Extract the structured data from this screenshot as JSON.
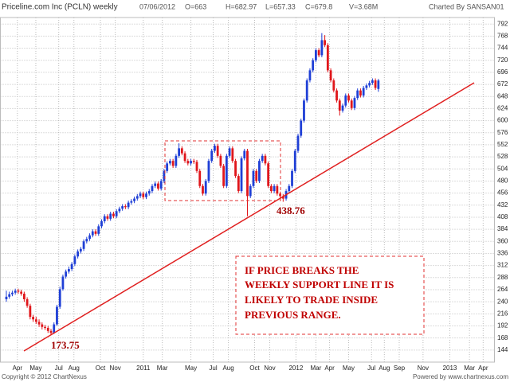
{
  "chart_data": {
    "type": "candlestick",
    "title": "Priceline.com Inc (PCLN) weekly",
    "header": [
      "07/06/2012",
      "O=663",
      "H=682.97",
      "L=657.33",
      "C=679.8",
      "V=3.68M"
    ],
    "credit": "Charted By SANSAN01",
    "footer_left": "Copyright © 2012 ChartNexus",
    "footer_right": "Powered by www.chartnexus.com",
    "annotations": [
      "173.75",
      "438.76"
    ],
    "note": [
      "IF PRICE BREAKS THE",
      "WEEKLY SUPPORT LINE IT IS",
      "LIKELY TO TRADE INSIDE",
      "PREVIOUS RANGE."
    ],
    "up_color": "#1f3fd6",
    "down_color": "#e0161b",
    "grid": true,
    "ylim": [
      120,
      805
    ],
    "yticks": [
      144,
      168,
      192,
      216,
      240,
      264,
      288,
      312,
      336,
      360,
      384,
      408,
      432,
      456,
      480,
      504,
      528,
      552,
      576,
      600,
      624,
      648,
      672,
      696,
      720,
      744,
      768,
      792
    ],
    "xlim": [
      -2,
      164
    ],
    "xticks": [
      {
        "value": 3.7,
        "label": "Apr"
      },
      {
        "value": 9.9,
        "label": "May"
      },
      {
        "value": 17.6,
        "label": "Jul"
      },
      {
        "value": 22.7,
        "label": "Aug"
      },
      {
        "value": 31.6,
        "label": "Oct"
      },
      {
        "value": 36.6,
        "label": "Nov"
      },
      {
        "value": 46,
        "label": "2011"
      },
      {
        "value": 52.4,
        "label": "Mar"
      },
      {
        "value": 62,
        "label": "May"
      },
      {
        "value": 69.5,
        "label": "Jul"
      },
      {
        "value": 74.6,
        "label": "Aug"
      },
      {
        "value": 83.4,
        "label": "Oct"
      },
      {
        "value": 88.5,
        "label": "Nov"
      },
      {
        "value": 97.3,
        "label": "2012"
      },
      {
        "value": 104,
        "label": "Mar"
      },
      {
        "value": 108.6,
        "label": "Apr"
      },
      {
        "value": 115,
        "label": "May"
      },
      {
        "value": 122.7,
        "label": "Jul"
      },
      {
        "value": 127,
        "label": "Aug"
      },
      {
        "value": 132,
        "label": "Sep"
      },
      {
        "value": 140,
        "label": "Nov"
      },
      {
        "value": 149,
        "label": "2013"
      },
      {
        "value": 155.6,
        "label": "Mar"
      },
      {
        "value": 160.2,
        "label": "Apr"
      }
    ],
    "candles": [
      [
        245,
        262,
        240,
        250
      ],
      [
        250,
        260,
        246,
        255
      ],
      [
        255,
        262,
        251,
        258
      ],
      [
        258,
        266,
        254,
        262
      ],
      [
        262,
        266,
        256,
        260
      ],
      [
        260,
        264,
        252,
        256
      ],
      [
        256,
        260,
        240,
        245
      ],
      [
        245,
        249,
        228,
        232
      ],
      [
        232,
        236,
        205,
        210
      ],
      [
        210,
        214,
        200,
        205
      ],
      [
        205,
        210,
        196,
        200
      ],
      [
        200,
        205,
        190,
        195
      ],
      [
        195,
        199,
        185,
        190
      ],
      [
        190,
        194,
        184,
        188
      ],
      [
        188,
        192,
        178,
        182
      ],
      [
        182,
        186,
        173.75,
        178
      ],
      [
        178,
        199,
        176,
        195
      ],
      [
        195,
        234,
        192,
        230
      ],
      [
        230,
        270,
        226,
        265
      ],
      [
        265,
        294,
        262,
        290
      ],
      [
        290,
        304,
        286,
        300
      ],
      [
        300,
        310,
        296,
        305
      ],
      [
        305,
        319,
        301,
        315
      ],
      [
        315,
        334,
        311,
        330
      ],
      [
        330,
        344,
        326,
        340
      ],
      [
        340,
        349,
        336,
        345
      ],
      [
        345,
        364,
        341,
        360
      ],
      [
        360,
        369,
        356,
        365
      ],
      [
        365,
        376,
        361,
        372
      ],
      [
        372,
        384,
        368,
        380
      ],
      [
        380,
        384,
        371,
        375
      ],
      [
        375,
        394,
        371,
        390
      ],
      [
        390,
        404,
        386,
        400
      ],
      [
        400,
        414,
        396,
        410
      ],
      [
        410,
        414,
        401,
        405
      ],
      [
        405,
        419,
        401,
        415
      ],
      [
        415,
        419,
        406,
        410
      ],
      [
        410,
        424,
        406,
        420
      ],
      [
        420,
        429,
        416,
        425
      ],
      [
        425,
        434,
        421,
        430
      ],
      [
        430,
        434,
        424,
        428
      ],
      [
        428,
        441,
        424,
        437
      ],
      [
        437,
        444,
        433,
        440
      ],
      [
        440,
        449,
        436,
        445
      ],
      [
        445,
        454,
        441,
        450
      ],
      [
        450,
        459,
        446,
        455
      ],
      [
        455,
        459,
        444,
        448
      ],
      [
        448,
        459,
        444,
        455
      ],
      [
        455,
        464,
        451,
        460
      ],
      [
        460,
        474,
        456,
        470
      ],
      [
        470,
        479,
        466,
        475
      ],
      [
        475,
        479,
        461,
        465
      ],
      [
        465,
        484,
        461,
        480
      ],
      [
        480,
        504,
        476,
        500
      ],
      [
        500,
        519,
        496,
        515
      ],
      [
        515,
        524,
        511,
        520
      ],
      [
        520,
        524,
        506,
        510
      ],
      [
        510,
        534,
        506,
        530
      ],
      [
        530,
        555,
        526,
        545
      ],
      [
        545,
        549,
        531,
        535
      ],
      [
        535,
        539,
        516,
        520
      ],
      [
        520,
        524,
        511,
        515
      ],
      [
        515,
        524,
        511,
        520
      ],
      [
        520,
        524,
        514,
        518
      ],
      [
        518,
        522,
        496,
        500
      ],
      [
        500,
        504,
        466,
        470
      ],
      [
        470,
        474,
        451,
        455
      ],
      [
        455,
        484,
        451,
        480
      ],
      [
        480,
        524,
        476,
        520
      ],
      [
        520,
        544,
        516,
        540
      ],
      [
        540,
        554,
        536,
        550
      ],
      [
        550,
        554,
        526,
        530
      ],
      [
        530,
        534,
        506,
        510
      ],
      [
        510,
        514,
        466,
        470
      ],
      [
        470,
        534,
        466,
        530
      ],
      [
        530,
        549,
        526,
        545
      ],
      [
        545,
        549,
        516,
        520
      ],
      [
        520,
        524,
        486,
        490
      ],
      [
        490,
        494,
        456,
        460
      ],
      [
        460,
        529,
        456,
        525
      ],
      [
        525,
        544,
        521,
        540
      ],
      [
        540,
        544,
        410,
        450
      ],
      [
        450,
        474,
        446,
        470
      ],
      [
        470,
        504,
        466,
        500
      ],
      [
        500,
        504,
        476,
        480
      ],
      [
        480,
        524,
        476,
        520
      ],
      [
        520,
        534,
        516,
        530
      ],
      [
        530,
        534,
        511,
        515
      ],
      [
        515,
        519,
        466,
        470
      ],
      [
        470,
        474,
        456,
        460
      ],
      [
        460,
        474,
        456,
        470
      ],
      [
        470,
        474,
        451,
        455
      ],
      [
        455,
        459,
        446,
        450
      ],
      [
        450,
        454,
        438.76,
        445
      ],
      [
        445,
        464,
        441,
        460
      ],
      [
        460,
        474,
        456,
        470
      ],
      [
        470,
        504,
        466,
        500
      ],
      [
        500,
        544,
        496,
        540
      ],
      [
        540,
        574,
        536,
        570
      ],
      [
        570,
        604,
        566,
        600
      ],
      [
        600,
        644,
        596,
        640
      ],
      [
        640,
        684,
        636,
        680
      ],
      [
        680,
        704,
        676,
        700
      ],
      [
        700,
        724,
        696,
        720
      ],
      [
        720,
        744,
        716,
        740
      ],
      [
        740,
        744,
        726,
        730
      ],
      [
        730,
        774,
        726,
        760
      ],
      [
        760,
        770,
        746,
        750
      ],
      [
        750,
        754,
        696,
        700
      ],
      [
        700,
        704,
        676,
        680
      ],
      [
        680,
        684,
        656,
        660
      ],
      [
        660,
        664,
        636,
        640
      ],
      [
        640,
        644,
        610,
        620
      ],
      [
        620,
        634,
        616,
        630
      ],
      [
        630,
        654,
        626,
        650
      ],
      [
        650,
        654,
        636,
        640
      ],
      [
        640,
        644,
        621,
        625
      ],
      [
        625,
        649,
        621,
        645
      ],
      [
        645,
        664,
        641,
        660
      ],
      [
        660,
        664,
        646,
        650
      ],
      [
        650,
        669,
        646,
        665
      ],
      [
        665,
        674,
        661,
        670
      ],
      [
        670,
        679,
        666,
        675
      ],
      [
        675,
        684,
        671,
        680
      ],
      [
        680,
        684,
        661,
        665
      ],
      [
        663,
        682.97,
        657.33,
        679.8
      ]
    ]
  }
}
